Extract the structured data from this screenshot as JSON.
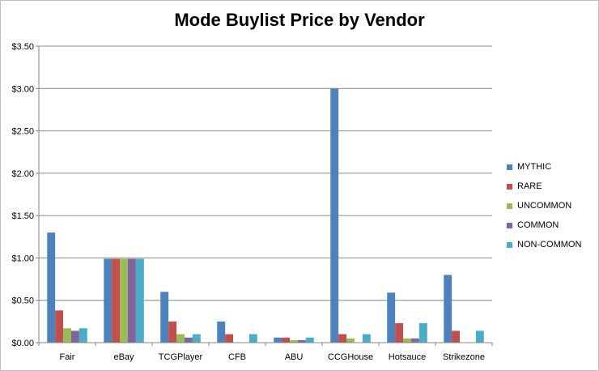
{
  "chart_data": {
    "type": "bar",
    "title": "Mode Buylist Price by Vendor",
    "xlabel": "",
    "ylabel": "",
    "categories": [
      "Fair",
      "eBay",
      "TCGPlayer",
      "CFB",
      "ABU",
      "CCGHouse",
      "Hotsauce",
      "Strikezone"
    ],
    "ylim": [
      0,
      3.5
    ],
    "yticks": [
      0,
      0.5,
      1.0,
      1.5,
      2.0,
      2.5,
      3.0,
      3.5
    ],
    "ytick_labels": [
      "$0.00",
      "$0.50",
      "$1.00",
      "$1.50",
      "$2.00",
      "$2.50",
      "$3.00",
      "$3.50"
    ],
    "grid": true,
    "legend_position": "right",
    "series": [
      {
        "name": "MYTHIC",
        "color": "#4F81BD",
        "values": [
          1.3,
          0.99,
          0.6,
          0.25,
          0.06,
          3.0,
          0.59,
          0.8
        ]
      },
      {
        "name": "RARE",
        "color": "#C0504D",
        "values": [
          0.38,
          0.99,
          0.25,
          0.1,
          0.06,
          0.1,
          0.23,
          0.14
        ]
      },
      {
        "name": "UNCOMMON",
        "color": "#9BBB59",
        "values": [
          0.17,
          0.99,
          0.1,
          0,
          0.03,
          0.05,
          0.05,
          0
        ]
      },
      {
        "name": "COMMON",
        "color": "#8064A2",
        "values": [
          0.14,
          0.99,
          0.06,
          0,
          0.03,
          0,
          0.05,
          0
        ]
      },
      {
        "name": "NON-COMMON",
        "color": "#4BACC6",
        "values": [
          0.17,
          0.99,
          0.1,
          0.1,
          0.06,
          0.1,
          0.23,
          0.14
        ]
      }
    ]
  }
}
